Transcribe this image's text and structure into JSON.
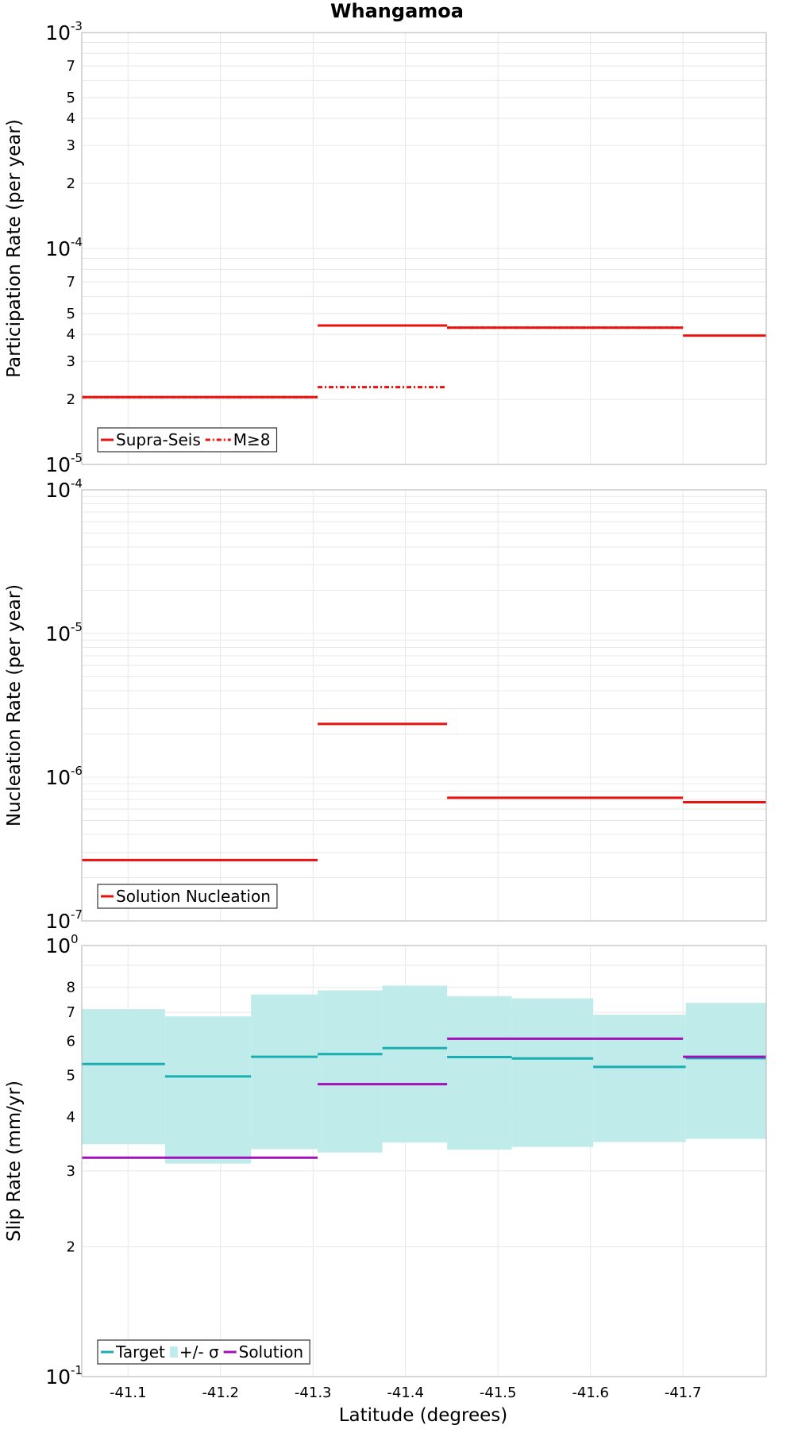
{
  "title": "Whangamoa",
  "xlabel": "Latitude (degrees)",
  "x_ticks": [
    "-41.1",
    "-41.2",
    "-41.3",
    "-41.4",
    "-41.5",
    "-41.6",
    "-41.7"
  ],
  "colors": {
    "supra_seis": "#e8120e",
    "m8": "#e8120e",
    "nucleation": "#e8120e",
    "target": "#1aaeb0",
    "sigma_fill": "#c0ebeb",
    "solution": "#a012b8",
    "grid": "#e8e8e8",
    "frame": "#bdbdbd"
  },
  "chart_data": [
    {
      "type": "line",
      "panel": "participation",
      "ylabel": "Participation Rate (per year)",
      "yscale": "log",
      "ylim": [
        1e-05,
        0.001
      ],
      "xlim": [
        -41.05,
        -41.79
      ],
      "x_invert": true,
      "major_tick_labels": [
        {
          "base": "10",
          "exp": "-3"
        },
        {
          "base": "10",
          "exp": "-4"
        },
        {
          "base": "10",
          "exp": "-5"
        }
      ],
      "minor_tick_labels": [
        "7",
        "5",
        "4",
        "3",
        "2",
        "7",
        "5",
        "4",
        "3",
        "2"
      ],
      "legend": [
        "Supra-Seis",
        "M≥8"
      ],
      "legend_location": "bottom-left",
      "series": [
        {
          "name": "Supra-Seis",
          "style": "solid",
          "segments": [
            {
              "x0": -41.05,
              "x1": -41.305,
              "y": 2.05e-05
            },
            {
              "x0": -41.305,
              "x1": -41.445,
              "y": 4.4e-05
            },
            {
              "x0": -41.445,
              "x1": -41.7,
              "y": 4.3e-05
            },
            {
              "x0": -41.7,
              "x1": -41.79,
              "y": 3.95e-05
            }
          ]
        },
        {
          "name": "M≥8",
          "style": "dash-dot",
          "segments": [
            {
              "x0": -41.05,
              "x1": -41.305,
              "y": 2.05e-05
            },
            {
              "x0": -41.305,
              "x1": -41.445,
              "y": 2.28e-05
            },
            {
              "x0": -41.445,
              "x1": -41.7,
              "y": 4.3e-05
            }
          ]
        }
      ]
    },
    {
      "type": "line",
      "panel": "nucleation",
      "ylabel": "Nucleation Rate (per year)",
      "yscale": "log",
      "ylim": [
        1e-07,
        0.0001
      ],
      "xlim": [
        -41.05,
        -41.79
      ],
      "x_invert": true,
      "major_tick_labels": [
        {
          "base": "10",
          "exp": "-4"
        },
        {
          "base": "10",
          "exp": "-5"
        },
        {
          "base": "10",
          "exp": "-6"
        },
        {
          "base": "10",
          "exp": "-7"
        }
      ],
      "legend": [
        "Solution Nucleation"
      ],
      "legend_location": "bottom-left",
      "series": [
        {
          "name": "Solution Nucleation",
          "style": "solid",
          "segments": [
            {
              "x0": -41.05,
              "x1": -41.305,
              "y": 2.65e-07
            },
            {
              "x0": -41.305,
              "x1": -41.445,
              "y": 2.35e-06
            },
            {
              "x0": -41.445,
              "x1": -41.7,
              "y": 7.2e-07
            },
            {
              "x0": -41.7,
              "x1": -41.79,
              "y": 6.7e-07
            }
          ]
        }
      ]
    },
    {
      "type": "line",
      "panel": "slip",
      "ylabel": "Slip Rate (mm/yr)",
      "yscale": "log",
      "ylim": [
        0.1,
        1.0
      ],
      "xlim": [
        -41.05,
        -41.79
      ],
      "x_invert": true,
      "major_tick_labels": [
        {
          "base": "10",
          "exp": "0"
        },
        {
          "base": "10",
          "exp": "-1"
        }
      ],
      "minor_tick_labels": [
        "8",
        "7",
        "6",
        "5",
        "4",
        "3",
        "2"
      ],
      "legend": [
        "Target",
        "+/- σ",
        "Solution"
      ],
      "legend_location": "bottom-left",
      "series": [
        {
          "name": "Target",
          "style": "solid",
          "segments": [
            {
              "x0": -41.05,
              "x1": -41.14,
              "y": 0.531
            },
            {
              "x0": -41.14,
              "x1": -41.233,
              "y": 0.497
            },
            {
              "x0": -41.233,
              "x1": -41.305,
              "y": 0.552
            },
            {
              "x0": -41.305,
              "x1": -41.375,
              "y": 0.56
            },
            {
              "x0": -41.375,
              "x1": -41.445,
              "y": 0.578
            },
            {
              "x0": -41.445,
              "x1": -41.515,
              "y": 0.551
            },
            {
              "x0": -41.515,
              "x1": -41.603,
              "y": 0.547
            },
            {
              "x0": -41.603,
              "x1": -41.703,
              "y": 0.523
            },
            {
              "x0": -41.703,
              "x1": -41.79,
              "y": 0.548
            }
          ]
        },
        {
          "name": "+/- σ",
          "style": "band",
          "segments": [
            {
              "x0": -41.05,
              "x1": -41.14,
              "low": 0.346,
              "high": 0.712
            },
            {
              "x0": -41.14,
              "x1": -41.233,
              "low": 0.312,
              "high": 0.685
            },
            {
              "x0": -41.233,
              "x1": -41.305,
              "low": 0.337,
              "high": 0.77
            },
            {
              "x0": -41.305,
              "x1": -41.375,
              "low": 0.331,
              "high": 0.787
            },
            {
              "x0": -41.375,
              "x1": -41.445,
              "low": 0.349,
              "high": 0.807
            },
            {
              "x0": -41.445,
              "x1": -41.515,
              "low": 0.336,
              "high": 0.763
            },
            {
              "x0": -41.515,
              "x1": -41.603,
              "low": 0.341,
              "high": 0.754
            },
            {
              "x0": -41.603,
              "x1": -41.703,
              "low": 0.35,
              "high": 0.691
            },
            {
              "x0": -41.703,
              "x1": -41.79,
              "low": 0.356,
              "high": 0.736
            }
          ]
        },
        {
          "name": "Solution",
          "style": "solid",
          "segments": [
            {
              "x0": -41.05,
              "x1": -41.305,
              "y": 0.322
            },
            {
              "x0": -41.305,
              "x1": -41.445,
              "y": 0.477
            },
            {
              "x0": -41.445,
              "x1": -41.7,
              "y": 0.608
            },
            {
              "x0": -41.7,
              "x1": -41.79,
              "y": 0.552
            }
          ]
        }
      ]
    }
  ]
}
